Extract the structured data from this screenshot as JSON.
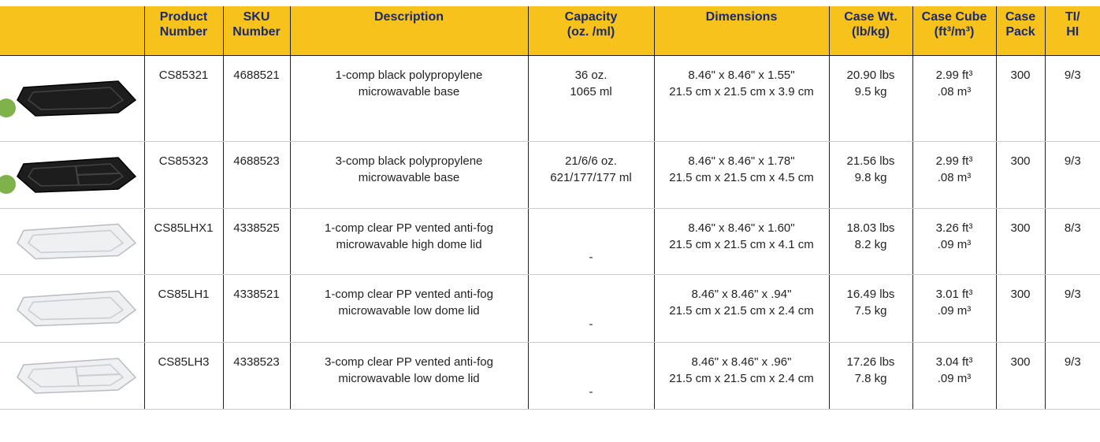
{
  "table": {
    "headers": [
      [],
      [
        "Product",
        "Number"
      ],
      [
        "SKU",
        "Number"
      ],
      [
        "Description"
      ],
      [
        "Capacity",
        "(oz. /ml)"
      ],
      [
        "Dimensions"
      ],
      [
        "Case Wt.",
        "(lb/kg)"
      ],
      [
        "Case Cube",
        "(ft³/m³)"
      ],
      [
        "Case",
        "Pack"
      ],
      [
        "TI/",
        "HI"
      ]
    ],
    "rows": [
      [
        [],
        [
          "CS85321"
        ],
        [
          "4688521"
        ],
        [
          "1-comp black polypropylene",
          "microwavable base"
        ],
        [
          "36 oz.",
          "1065 ml"
        ],
        [
          "8.46\" x 8.46\" x 1.55\"",
          "21.5 cm x 21.5 cm x 3.9 cm"
        ],
        [
          "20.90 lbs",
          "9.5 kg"
        ],
        [
          "2.99 ft³",
          ".08 m³"
        ],
        [
          "300"
        ],
        [
          "9/3"
        ]
      ],
      [
        [],
        [
          "CS85323"
        ],
        [
          "4688523"
        ],
        [
          "3-comp black polypropylene",
          "microwavable base"
        ],
        [
          "21/6/6 oz.",
          "621/177/177 ml"
        ],
        [
          "8.46\" x 8.46\" x 1.78\"",
          "21.5 cm x 21.5 cm x 4.5 cm"
        ],
        [
          "21.56 lbs",
          "9.8 kg"
        ],
        [
          "2.99 ft³",
          ".08 m³"
        ],
        [
          "300"
        ],
        [
          "9/3"
        ]
      ],
      [
        [],
        [
          "CS85LHX1"
        ],
        [
          "4338525"
        ],
        [
          "1-comp clear PP vented anti-fog",
          "microwavable high dome lid"
        ],
        [
          "-"
        ],
        [
          "8.46\" x 8.46\" x 1.60\"",
          "21.5 cm x 21.5 cm x 4.1 cm"
        ],
        [
          "18.03 lbs",
          "8.2 kg"
        ],
        [
          "3.26 ft³",
          ".09 m³"
        ],
        [
          "300"
        ],
        [
          "8/3"
        ]
      ],
      [
        [],
        [
          "CS85LH1"
        ],
        [
          "4338521"
        ],
        [
          "1-comp clear PP vented anti-fog",
          "microwavable low dome lid"
        ],
        [
          "-"
        ],
        [
          "8.46\" x 8.46\" x .94\"",
          "21.5 cm x 21.5 cm x 2.4 cm"
        ],
        [
          "16.49 lbs",
          "7.5 kg"
        ],
        [
          "3.01 ft³",
          ".09 m³"
        ],
        [
          "300"
        ],
        [
          "9/3"
        ]
      ],
      [
        [],
        [
          "CS85LH3"
        ],
        [
          "4338523"
        ],
        [
          "3-comp clear PP vented anti-fog",
          "microwavable low dome lid"
        ],
        [
          "-"
        ],
        [
          "8.46\" x 8.46\" x .96\"",
          "21.5 cm x 21.5 cm x 2.4 cm"
        ],
        [
          "17.26 lbs",
          "7.8 kg"
        ],
        [
          "3.04 ft³",
          ".09 m³"
        ],
        [
          "300"
        ],
        [
          "9/3"
        ]
      ]
    ]
  }
}
